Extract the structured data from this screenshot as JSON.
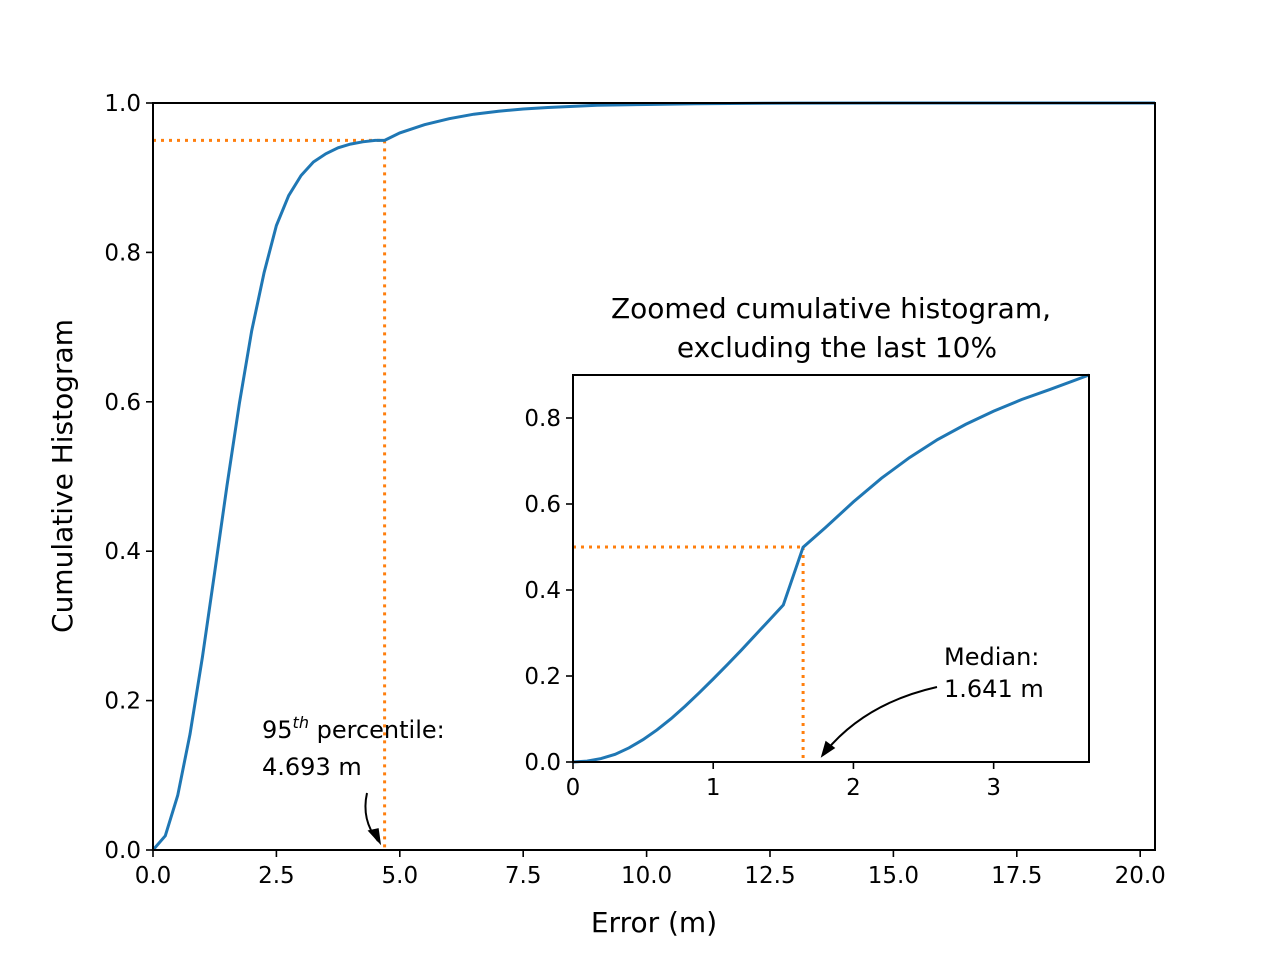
{
  "colors": {
    "curve": "#1f77b4",
    "marker": "#ff7f0e",
    "text": "#000000"
  },
  "chart_data": [
    {
      "type": "line",
      "name": "main",
      "title": "",
      "xlabel": "Error (m)",
      "ylabel": "Cumulative Histogram",
      "xlim": [
        0,
        20.3
      ],
      "ylim": [
        0,
        1.0
      ],
      "xticks": [
        0,
        2.5,
        5,
        7.5,
        10,
        12.5,
        15,
        17.5,
        20
      ],
      "xtick_labels": [
        "0.0",
        "2.5",
        "5.0",
        "7.5",
        "10.0",
        "12.5",
        "15.0",
        "17.5",
        "20.0"
      ],
      "yticks": [
        0,
        0.2,
        0.4,
        0.6,
        0.8,
        1.0
      ],
      "ytick_labels": [
        "0.0",
        "0.2",
        "0.4",
        "0.6",
        "0.8",
        "1.0"
      ],
      "series": [
        {
          "name": "cumulative histogram",
          "x": [
            0,
            0.25,
            0.5,
            0.75,
            1.0,
            1.25,
            1.5,
            1.75,
            2.0,
            2.25,
            2.5,
            2.75,
            3.0,
            3.25,
            3.5,
            3.75,
            4.0,
            4.25,
            4.5,
            4.693,
            5.0,
            5.5,
            6.0,
            6.5,
            7.0,
            7.5,
            8.0,
            9.0,
            10.0,
            11.0,
            12.0,
            13.0,
            15.0,
            17.5,
            20.3
          ],
          "y": [
            0,
            0.019,
            0.073,
            0.155,
            0.258,
            0.372,
            0.488,
            0.598,
            0.695,
            0.773,
            0.836,
            0.876,
            0.903,
            0.921,
            0.932,
            0.94,
            0.945,
            0.948,
            0.95,
            0.95,
            0.96,
            0.971,
            0.979,
            0.985,
            0.989,
            0.992,
            0.994,
            0.997,
            0.998,
            0.999,
            0.9995,
            0.9998,
            1.0,
            1.0,
            1.0
          ]
        }
      ],
      "reference": {
        "x": 4.693,
        "y": 0.95
      },
      "annotation": {
        "line1_prefix": "95",
        "line1_sup": "th",
        "line1_suffix": " percentile:",
        "line2": "4.693 m"
      }
    },
    {
      "type": "line",
      "name": "inset",
      "title": "Zoomed cumulative histogram,",
      "title_line2": "excluding the last 10%",
      "xlim": [
        0,
        3.68
      ],
      "ylim": [
        0,
        0.9
      ],
      "xticks": [
        0,
        1,
        2,
        3
      ],
      "xtick_labels": [
        "0",
        "1",
        "2",
        "3"
      ],
      "yticks": [
        0,
        0.2,
        0.4,
        0.6,
        0.8
      ],
      "ytick_labels": [
        "0.0",
        "0.2",
        "0.4",
        "0.6",
        "0.8"
      ],
      "series": [
        {
          "name": "cumulative histogram (zoomed)",
          "x": [
            0,
            0.1,
            0.2,
            0.3,
            0.4,
            0.5,
            0.6,
            0.7,
            0.8,
            0.9,
            1.0,
            1.1,
            1.2,
            1.3,
            1.4,
            1.5,
            1.641,
            1.8,
            2.0,
            2.2,
            2.4,
            2.6,
            2.8,
            3.0,
            3.2,
            3.4,
            3.68
          ],
          "y": [
            0,
            0.002,
            0.008,
            0.018,
            0.033,
            0.052,
            0.075,
            0.101,
            0.13,
            0.161,
            0.193,
            0.226,
            0.26,
            0.295,
            0.33,
            0.365,
            0.4995,
            0.545,
            0.605,
            0.66,
            0.708,
            0.75,
            0.785,
            0.816,
            0.843,
            0.866,
            0.9
          ]
        }
      ],
      "reference": {
        "x": 1.641,
        "y": 0.5
      },
      "annotation": {
        "line1": "Median:",
        "line2": "1.641 m"
      }
    }
  ]
}
